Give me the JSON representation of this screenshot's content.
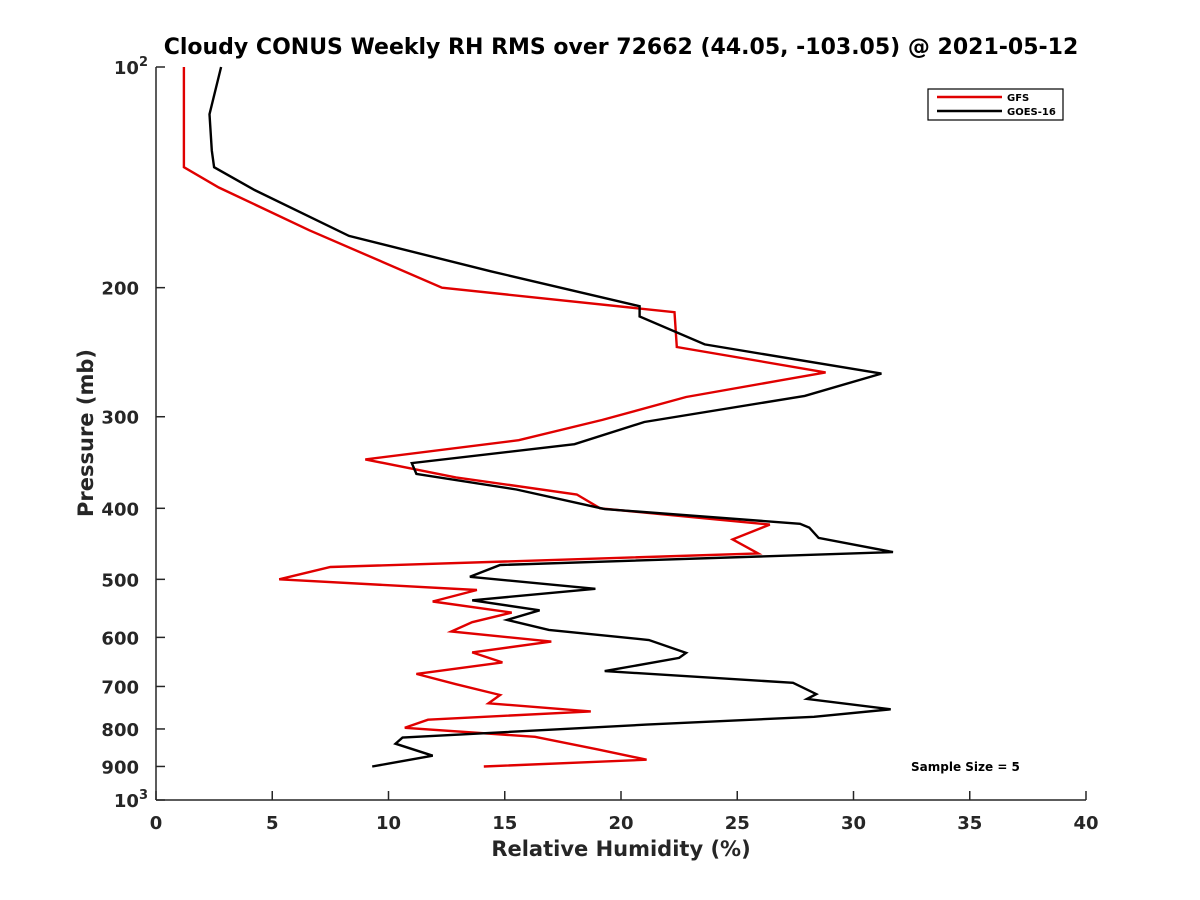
{
  "chart_data": {
    "type": "line",
    "title": "Cloudy CONUS Weekly RH RMS over 72662 (44.05, -103.05) @ 2021-05-12",
    "xlabel": "Relative Humidity (%)",
    "ylabel": "Pressure (mb)",
    "xlim": [
      0,
      40
    ],
    "ylim": [
      100,
      1000
    ],
    "y_scale": "log",
    "y_reversed": true,
    "grid": false,
    "legend_position": "top-right",
    "x_ticks": [
      "0",
      "5",
      "10",
      "15",
      "20",
      "25",
      "30",
      "35",
      "40"
    ],
    "y_ticks": [
      {
        "value": 100,
        "label": "10",
        "sup": "2"
      },
      {
        "value": 200,
        "label": "200",
        "sup": ""
      },
      {
        "value": 300,
        "label": "300",
        "sup": ""
      },
      {
        "value": 400,
        "label": "400",
        "sup": ""
      },
      {
        "value": 500,
        "label": "500",
        "sup": ""
      },
      {
        "value": 600,
        "label": "600",
        "sup": ""
      },
      {
        "value": 700,
        "label": "700",
        "sup": ""
      },
      {
        "value": 800,
        "label": "800",
        "sup": ""
      },
      {
        "value": 900,
        "label": "900",
        "sup": ""
      },
      {
        "value": 1000,
        "label": "10",
        "sup": "3"
      }
    ],
    "annotation": "Sample Size = 5",
    "series": [
      {
        "name": "GFS",
        "color": "#e00000",
        "points": [
          [
            1.2,
            100
          ],
          [
            1.2,
            117
          ],
          [
            1.2,
            137
          ],
          [
            2.7,
            146
          ],
          [
            6.6,
            167
          ],
          [
            12.3,
            200
          ],
          [
            22.3,
            216
          ],
          [
            22.4,
            241
          ],
          [
            28.8,
            261
          ],
          [
            22.8,
            282
          ],
          [
            19.2,
            303
          ],
          [
            15.6,
            323
          ],
          [
            9.0,
            343
          ],
          [
            12.9,
            363
          ],
          [
            18.1,
            383
          ],
          [
            19.1,
            400
          ],
          [
            26.4,
            421
          ],
          [
            24.8,
            441
          ],
          [
            25.9,
            461
          ],
          [
            7.5,
            481
          ],
          [
            5.3,
            500
          ],
          [
            13.8,
            517
          ],
          [
            11.9,
            536
          ],
          [
            15.3,
            555
          ],
          [
            13.6,
            572
          ],
          [
            12.7,
            589
          ],
          [
            17.0,
            608
          ],
          [
            13.6,
            629
          ],
          [
            14.9,
            649
          ],
          [
            11.2,
            673
          ],
          [
            12.9,
            695
          ],
          [
            14.8,
            719
          ],
          [
            14.3,
            738
          ],
          [
            18.7,
            757
          ],
          [
            11.7,
            777
          ],
          [
            10.7,
            797
          ],
          [
            16.3,
            820
          ],
          [
            19.0,
            853
          ],
          [
            21.1,
            881
          ],
          [
            14.1,
            900
          ]
        ]
      },
      {
        "name": "GOES-16",
        "color": "#000000",
        "points": [
          [
            2.8,
            100
          ],
          [
            2.3,
            116
          ],
          [
            2.4,
            130
          ],
          [
            2.5,
            137
          ],
          [
            4.2,
            147
          ],
          [
            8.3,
            170
          ],
          [
            14.4,
            190
          ],
          [
            20.8,
            212
          ],
          [
            20.8,
            219
          ],
          [
            23.6,
            239
          ],
          [
            31.2,
            262
          ],
          [
            27.9,
            281
          ],
          [
            21.0,
            305
          ],
          [
            18.0,
            327
          ],
          [
            11.0,
            347
          ],
          [
            11.2,
            359
          ],
          [
            15.5,
            377
          ],
          [
            19.3,
            401
          ],
          [
            27.7,
            420
          ],
          [
            28.1,
            425
          ],
          [
            28.5,
            439
          ],
          [
            31.7,
            459
          ],
          [
            14.8,
            478
          ],
          [
            13.5,
            496
          ],
          [
            18.9,
            515
          ],
          [
            13.6,
            534
          ],
          [
            16.5,
            551
          ],
          [
            15.1,
            568
          ],
          [
            16.9,
            586
          ],
          [
            21.2,
            605
          ],
          [
            22.8,
            630
          ],
          [
            22.5,
            640
          ],
          [
            19.3,
            667
          ],
          [
            27.4,
            692
          ],
          [
            28.4,
            717
          ],
          [
            28.0,
            728
          ],
          [
            31.6,
            752
          ],
          [
            28.3,
            770
          ],
          [
            21.1,
            789
          ],
          [
            10.6,
            822
          ],
          [
            10.3,
            838
          ],
          [
            11.9,
            870
          ],
          [
            9.3,
            900
          ]
        ]
      }
    ]
  }
}
